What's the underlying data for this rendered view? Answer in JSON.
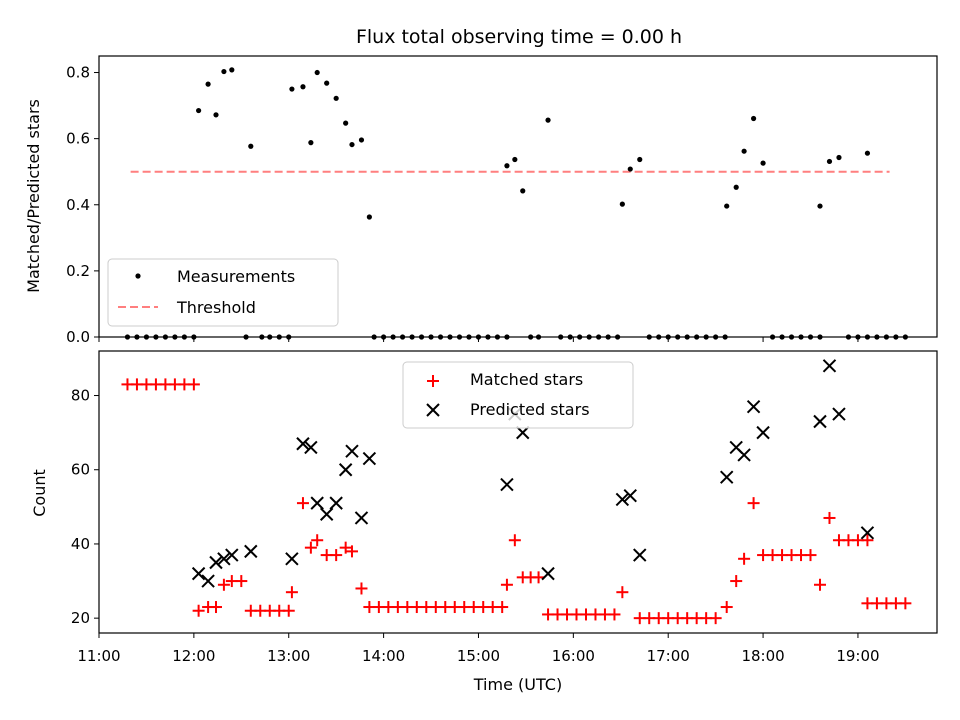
{
  "chart_data": {
    "title": "Flux total observing time = 0.00 h",
    "xlabel": "Time (UTC)",
    "xticks": [
      "11:00",
      "12:00",
      "13:00",
      "14:00",
      "15:00",
      "16:00",
      "17:00",
      "18:00",
      "19:00"
    ],
    "xlim": [
      "11:00",
      "19:50"
    ],
    "top": {
      "type": "scatter",
      "ylabel": "Matched/Predicted stars",
      "ylim": [
        0,
        0.85
      ],
      "yticks": [
        "0.0",
        "0.2",
        "0.4",
        "0.6",
        "0.8"
      ],
      "legend_position": "lower-left",
      "threshold": 0.5,
      "threshold_range": [
        "11:20",
        "19:20"
      ],
      "series": [
        {
          "name": "Measurements",
          "color": "#000000",
          "points": [
            [
              "11:18",
              0
            ],
            [
              "11:24",
              0
            ],
            [
              "11:30",
              0
            ],
            [
              "11:36",
              0
            ],
            [
              "11:42",
              0
            ],
            [
              "11:48",
              0
            ],
            [
              "11:54",
              0
            ],
            [
              "12:00",
              0
            ],
            [
              "12:03",
              0.685
            ],
            [
              "12:09",
              0.765
            ],
            [
              "12:14",
              0.672
            ],
            [
              "12:19",
              0.803
            ],
            [
              "12:24",
              0.808
            ],
            [
              "12:33",
              0
            ],
            [
              "12:36",
              0.577
            ],
            [
              "12:43",
              0
            ],
            [
              "12:48",
              0
            ],
            [
              "12:54",
              0
            ],
            [
              "13:00",
              0
            ],
            [
              "13:02",
              0.75
            ],
            [
              "13:09",
              0.757
            ],
            [
              "13:14",
              0.588
            ],
            [
              "13:18",
              0.8
            ],
            [
              "13:24",
              0.768
            ],
            [
              "13:30",
              0.722
            ],
            [
              "13:36",
              0.647
            ],
            [
              "13:40",
              0.582
            ],
            [
              "13:46",
              0.596
            ],
            [
              "13:51",
              0.363
            ],
            [
              "13:54",
              0
            ],
            [
              "14:00",
              0
            ],
            [
              "14:06",
              0
            ],
            [
              "14:12",
              0
            ],
            [
              "14:18",
              0
            ],
            [
              "14:24",
              0
            ],
            [
              "14:30",
              0
            ],
            [
              "14:36",
              0
            ],
            [
              "14:42",
              0
            ],
            [
              "14:48",
              0
            ],
            [
              "14:54",
              0
            ],
            [
              "15:00",
              0
            ],
            [
              "15:06",
              0
            ],
            [
              "15:12",
              0
            ],
            [
              "15:18",
              0
            ],
            [
              "15:18",
              0.518
            ],
            [
              "15:23",
              0.537
            ],
            [
              "15:28",
              0.442
            ],
            [
              "15:33",
              0
            ],
            [
              "15:38",
              0
            ],
            [
              "15:44",
              0.656
            ],
            [
              "15:52",
              0
            ],
            [
              "15:58",
              0
            ],
            [
              "16:04",
              0
            ],
            [
              "16:10",
              0
            ],
            [
              "16:16",
              0
            ],
            [
              "16:22",
              0
            ],
            [
              "16:28",
              0
            ],
            [
              "16:31",
              0.402
            ],
            [
              "16:36",
              0.508
            ],
            [
              "16:42",
              0.537
            ],
            [
              "16:48",
              0
            ],
            [
              "16:54",
              0
            ],
            [
              "17:00",
              0
            ],
            [
              "17:06",
              0
            ],
            [
              "17:12",
              0
            ],
            [
              "17:18",
              0
            ],
            [
              "17:24",
              0
            ],
            [
              "17:30",
              0
            ],
            [
              "17:36",
              0
            ],
            [
              "17:37",
              0.396
            ],
            [
              "17:43",
              0.453
            ],
            [
              "17:48",
              0.562
            ],
            [
              "17:54",
              0.661
            ],
            [
              "18:00",
              0.526
            ],
            [
              "18:06",
              0
            ],
            [
              "18:12",
              0
            ],
            [
              "18:18",
              0
            ],
            [
              "18:24",
              0
            ],
            [
              "18:30",
              0
            ],
            [
              "18:36",
              0
            ],
            [
              "18:36",
              0.396
            ],
            [
              "18:42",
              0.531
            ],
            [
              "18:48",
              0.543
            ],
            [
              "18:54",
              0
            ],
            [
              "19:00",
              0
            ],
            [
              "19:06",
              0
            ],
            [
              "19:06",
              0.556
            ],
            [
              "19:12",
              0
            ],
            [
              "19:18",
              0
            ],
            [
              "19:24",
              0
            ],
            [
              "19:30",
              0
            ]
          ]
        },
        {
          "name": "Threshold",
          "color": "#ff7f7f"
        }
      ]
    },
    "bottom": {
      "type": "scatter",
      "ylabel": "Count",
      "ylim": [
        16,
        92
      ],
      "yticks": [
        "20",
        "40",
        "60",
        "80"
      ],
      "legend_position": "upper-center",
      "series": [
        {
          "name": "Matched stars",
          "color": "#ff0000",
          "points": [
            [
              "11:18",
              83
            ],
            [
              "11:24",
              83
            ],
            [
              "11:30",
              83
            ],
            [
              "11:36",
              83
            ],
            [
              "11:42",
              83
            ],
            [
              "11:48",
              83
            ],
            [
              "11:54",
              83
            ],
            [
              "12:00",
              83
            ],
            [
              "12:03",
              22
            ],
            [
              "12:09",
              23
            ],
            [
              "12:14",
              23
            ],
            [
              "12:19",
              29
            ],
            [
              "12:24",
              30
            ],
            [
              "12:30",
              30
            ],
            [
              "12:36",
              22
            ],
            [
              "12:42",
              22
            ],
            [
              "12:48",
              22
            ],
            [
              "12:54",
              22
            ],
            [
              "13:00",
              22
            ],
            [
              "13:02",
              27
            ],
            [
              "13:09",
              51
            ],
            [
              "13:14",
              39
            ],
            [
              "13:18",
              41
            ],
            [
              "13:24",
              37
            ],
            [
              "13:30",
              37
            ],
            [
              "13:36",
              39
            ],
            [
              "13:40",
              38
            ],
            [
              "13:46",
              28
            ],
            [
              "13:51",
              23
            ],
            [
              "13:57",
              23
            ],
            [
              "14:03",
              23
            ],
            [
              "14:09",
              23
            ],
            [
              "14:15",
              23
            ],
            [
              "14:21",
              23
            ],
            [
              "14:27",
              23
            ],
            [
              "14:33",
              23
            ],
            [
              "14:39",
              23
            ],
            [
              "14:45",
              23
            ],
            [
              "14:51",
              23
            ],
            [
              "14:57",
              23
            ],
            [
              "15:03",
              23
            ],
            [
              "15:09",
              23
            ],
            [
              "15:15",
              23
            ],
            [
              "15:18",
              29
            ],
            [
              "15:23",
              41
            ],
            [
              "15:28",
              31
            ],
            [
              "15:33",
              31
            ],
            [
              "15:38",
              31
            ],
            [
              "15:44",
              21
            ],
            [
              "15:50",
              21
            ],
            [
              "15:56",
              21
            ],
            [
              "16:02",
              21
            ],
            [
              "16:08",
              21
            ],
            [
              "16:14",
              21
            ],
            [
              "16:20",
              21
            ],
            [
              "16:26",
              21
            ],
            [
              "16:31",
              27
            ],
            [
              "16:42",
              20
            ],
            [
              "16:48",
              20
            ],
            [
              "16:54",
              20
            ],
            [
              "17:00",
              20
            ],
            [
              "17:06",
              20
            ],
            [
              "17:12",
              20
            ],
            [
              "17:18",
              20
            ],
            [
              "17:24",
              20
            ],
            [
              "17:30",
              20
            ],
            [
              "17:37",
              23
            ],
            [
              "17:43",
              30
            ],
            [
              "17:48",
              36
            ],
            [
              "17:54",
              51
            ],
            [
              "18:00",
              37
            ],
            [
              "18:06",
              37
            ],
            [
              "18:12",
              37
            ],
            [
              "18:18",
              37
            ],
            [
              "18:24",
              37
            ],
            [
              "18:30",
              37
            ],
            [
              "18:36",
              29
            ],
            [
              "18:42",
              47
            ],
            [
              "18:48",
              41
            ],
            [
              "18:54",
              41
            ],
            [
              "19:00",
              41
            ],
            [
              "19:06",
              41
            ],
            [
              "19:06",
              24
            ],
            [
              "19:12",
              24
            ],
            [
              "19:18",
              24
            ],
            [
              "19:24",
              24
            ],
            [
              "19:30",
              24
            ]
          ]
        },
        {
          "name": "Predicted stars",
          "color": "#000000",
          "points": [
            [
              "12:03",
              32
            ],
            [
              "12:09",
              30
            ],
            [
              "12:14",
              35
            ],
            [
              "12:19",
              36
            ],
            [
              "12:24",
              37
            ],
            [
              "12:36",
              38
            ],
            [
              "13:02",
              36
            ],
            [
              "13:09",
              67
            ],
            [
              "13:14",
              66
            ],
            [
              "13:18",
              51
            ],
            [
              "13:24",
              48
            ],
            [
              "13:30",
              51
            ],
            [
              "13:36",
              60
            ],
            [
              "13:40",
              65
            ],
            [
              "13:46",
              47
            ],
            [
              "13:51",
              63
            ],
            [
              "15:18",
              56
            ],
            [
              "15:23",
              75
            ],
            [
              "15:28",
              70
            ],
            [
              "15:44",
              32
            ],
            [
              "16:31",
              52
            ],
            [
              "16:36",
              53
            ],
            [
              "16:42",
              37
            ],
            [
              "17:37",
              58
            ],
            [
              "17:43",
              66
            ],
            [
              "17:48",
              64
            ],
            [
              "17:54",
              77
            ],
            [
              "18:00",
              70
            ],
            [
              "18:36",
              73
            ],
            [
              "18:42",
              88
            ],
            [
              "18:48",
              75
            ],
            [
              "19:06",
              43
            ]
          ]
        }
      ]
    }
  }
}
